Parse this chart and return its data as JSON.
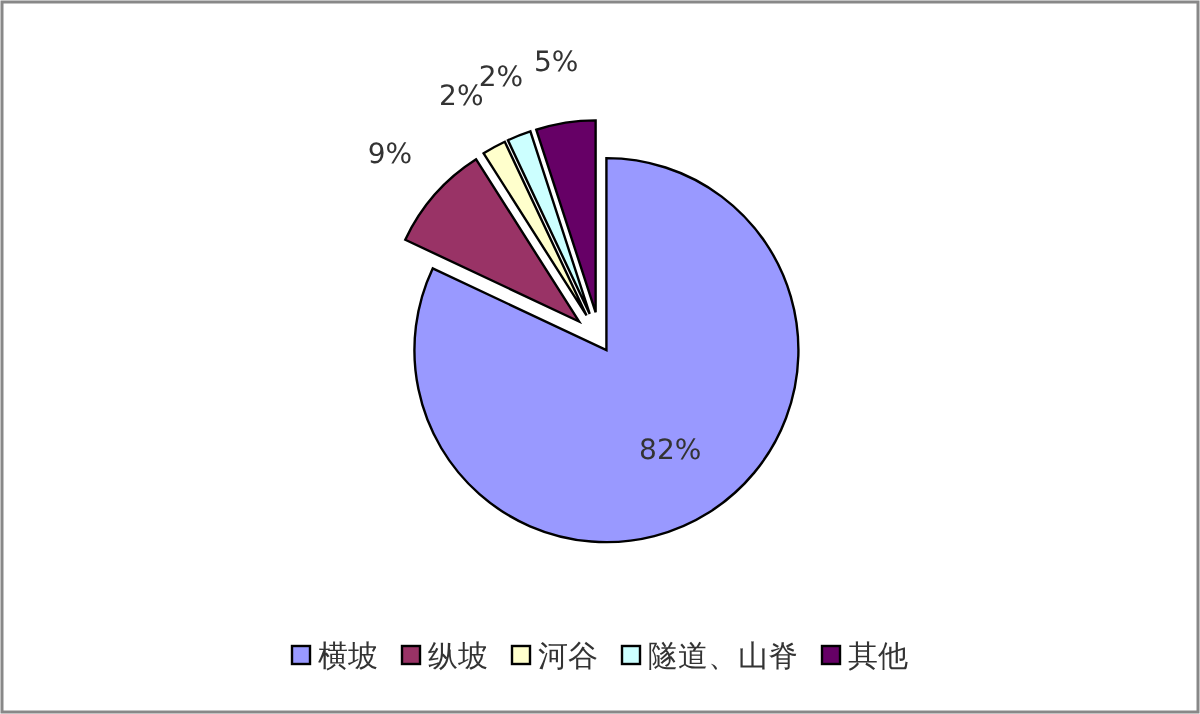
{
  "chart_data": {
    "type": "pie",
    "categories": [
      "横坡",
      "纵坡",
      "河谷",
      "隧道、山脊",
      "其他"
    ],
    "values": [
      82,
      9,
      2,
      2,
      5
    ],
    "colors": [
      "#9999ff",
      "#993366",
      "#ffffcc",
      "#ccffff",
      "#660066"
    ],
    "value_labels": [
      "82%",
      "9%",
      "2%",
      "2%",
      "5%"
    ],
    "legend": "bottom"
  }
}
